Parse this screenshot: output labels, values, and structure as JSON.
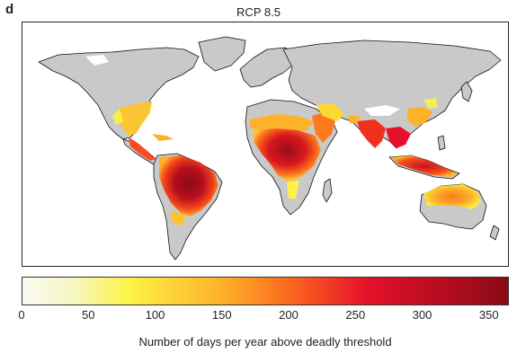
{
  "panel": {
    "letter": "d",
    "title": "RCP 8.5"
  },
  "legend": {
    "label": "Number of days per year above deadly threshold",
    "min": 0,
    "max": 365,
    "ticks": [
      "0",
      "50",
      "100",
      "150",
      "200",
      "250",
      "300",
      "350"
    ],
    "tick_values": [
      0,
      50,
      100,
      150,
      200,
      250,
      300,
      350
    ],
    "color_stops": [
      {
        "value": 0,
        "color": "#fafaf4"
      },
      {
        "value": 40,
        "color": "#f6f7bf"
      },
      {
        "value": 80,
        "color": "#fdf245"
      },
      {
        "value": 150,
        "color": "#fdb22a"
      },
      {
        "value": 200,
        "color": "#fb6a1e"
      },
      {
        "value": 260,
        "color": "#e5102a"
      },
      {
        "value": 365,
        "color": "#8b0a16"
      }
    ]
  },
  "colors": {
    "land": "#c9c9c9",
    "coast": "#111111",
    "ocean": "#ffffff"
  }
}
